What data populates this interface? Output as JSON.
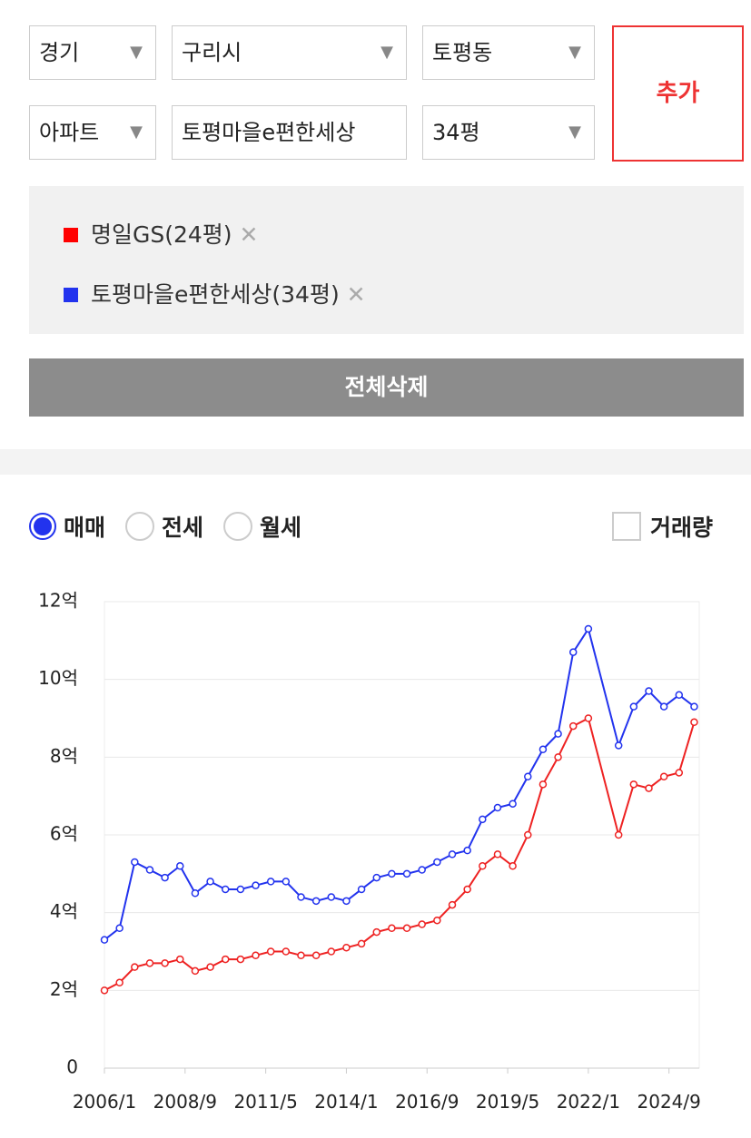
{
  "filters": {
    "province": "경기",
    "city": "구리시",
    "dong": "토평동",
    "kind": "아파트",
    "complex": "토평마을e편한세상",
    "size": "34평",
    "add": "추가"
  },
  "selected": [
    {
      "label": "명일GS(24평)"
    },
    {
      "label": "토평마을e편한세상(34평)"
    }
  ],
  "clear_all": "전체삭제",
  "options": {
    "trade": "매매",
    "jeonse": "전세",
    "monthly": "월세",
    "volume": "거래량"
  },
  "chart_data": {
    "type": "line",
    "grid": true,
    "x": [
      "2006/1",
      "2006/7",
      "2007/1",
      "2007/7",
      "2008/1",
      "2008/7",
      "2009/1",
      "2009/7",
      "2010/1",
      "2010/7",
      "2011/1",
      "2011/7",
      "2012/1",
      "2012/7",
      "2013/1",
      "2013/7",
      "2014/1",
      "2014/7",
      "2015/1",
      "2015/7",
      "2016/1",
      "2016/7",
      "2017/1",
      "2017/7",
      "2018/1",
      "2018/7",
      "2019/1",
      "2019/7",
      "2020/1",
      "2020/7",
      "2021/1",
      "2021/7",
      "2022/1",
      "2023/1",
      "2023/7",
      "2024/1",
      "2024/7",
      "2025/1",
      "2025/7"
    ],
    "xlim": [
      "2006/1",
      "2025/9"
    ],
    "xticks": [
      "2006/1",
      "2008/9",
      "2011/5",
      "2014/1",
      "2016/9",
      "2019/5",
      "2022/1",
      "2024/9"
    ],
    "ylim": [
      0,
      12
    ],
    "yticks": [
      0,
      {
        "value": 2,
        "label": "2억"
      },
      {
        "value": 4,
        "label": "4억"
      },
      {
        "value": 6,
        "label": "6억"
      },
      {
        "value": 8,
        "label": "8억"
      },
      {
        "value": 10,
        "label": "10억"
      },
      {
        "value": 12,
        "label": "12억"
      }
    ],
    "series": [
      {
        "name": "명일GS(24평)",
        "color": "#ee2222",
        "values": [
          2.0,
          2.2,
          2.6,
          2.7,
          2.7,
          2.8,
          2.5,
          2.6,
          2.8,
          2.8,
          2.9,
          3.0,
          3.0,
          2.9,
          2.9,
          3.0,
          3.1,
          3.2,
          3.5,
          3.6,
          3.6,
          3.7,
          3.8,
          4.2,
          4.6,
          5.2,
          5.5,
          5.2,
          6.0,
          7.3,
          8.0,
          8.8,
          9.0,
          6.0,
          7.3,
          7.2,
          7.5,
          7.6,
          8.9
        ]
      },
      {
        "name": "토평마을e편한세상(34평)",
        "color": "#2233ee",
        "values": [
          3.3,
          3.6,
          5.3,
          5.1,
          4.9,
          5.2,
          4.5,
          4.8,
          4.6,
          4.6,
          4.7,
          4.8,
          4.8,
          4.4,
          4.3,
          4.4,
          4.3,
          4.6,
          4.9,
          5.0,
          5.0,
          5.1,
          5.3,
          5.5,
          5.6,
          6.4,
          6.7,
          6.8,
          7.5,
          8.2,
          8.6,
          10.7,
          11.3,
          8.3,
          9.3,
          9.7,
          9.3,
          9.6,
          9.3
        ]
      }
    ]
  }
}
